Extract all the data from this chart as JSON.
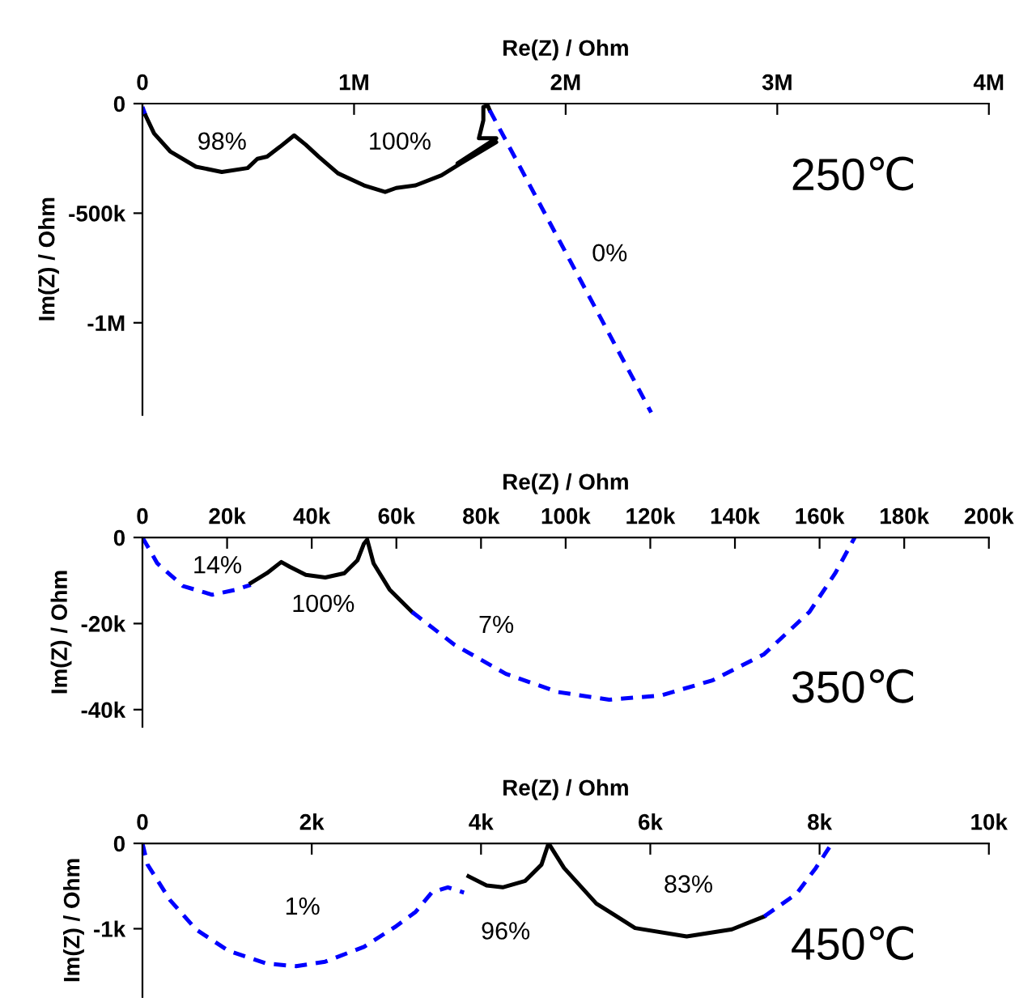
{
  "chart_data": [
    {
      "type": "line",
      "xlabel": "Re(Z) / Ohm",
      "ylabel": "Im(Z) / Ohm",
      "xlim": [
        0,
        4000000
      ],
      "ylim": [
        -1420000,
        0
      ],
      "xticks": [
        {
          "value": 0,
          "label": "0"
        },
        {
          "value": 1000000,
          "label": "1M"
        },
        {
          "value": 2000000,
          "label": "2M"
        },
        {
          "value": 3000000,
          "label": "3M"
        },
        {
          "value": 4000000,
          "label": "4M"
        }
      ],
      "yticks": [
        {
          "value": 0,
          "label": "0"
        },
        {
          "value": -500000,
          "label": "-500k"
        },
        {
          "value": -1000000,
          "label": "-1M"
        }
      ],
      "grid": false,
      "legend": false,
      "marker": "none",
      "series": [
        {
          "color": "#0000ff",
          "line_style": "dashed",
          "x": [
            0,
            15000
          ],
          "values": [
            -15000,
            -55000
          ]
        },
        {
          "color": "#000000",
          "line_style": "solid",
          "x": [
            15000,
            55000,
            131000,
            253000,
            375000,
            497000,
            543000,
            589000,
            650000,
            717000,
            772000,
            833000,
            924000,
            1047000,
            1147000,
            1199000,
            1291000,
            1413000,
            1504000,
            1672000,
            1489000,
            1672000,
            1590000,
            1611000,
            1611000,
            1632000,
            1641000
          ],
          "values": [
            -55000,
            -136000,
            -218000,
            -288000,
            -312000,
            -294000,
            -252000,
            -242000,
            -197000,
            -145000,
            -188000,
            -242000,
            -318000,
            -373000,
            -403000,
            -385000,
            -373000,
            -327000,
            -273000,
            -176000,
            -273000,
            -158000,
            -158000,
            -76000,
            -15000,
            -9000,
            -30000
          ]
        },
        {
          "color": "#0000ff",
          "line_style": "dashed",
          "x": [
            1641000,
            2404000
          ],
          "values": [
            -30000,
            -1409000
          ]
        }
      ],
      "annotations": [
        "98%",
        "100%",
        "0%",
        "250℃"
      ]
    },
    {
      "type": "line",
      "xlabel": "Re(Z) / Ohm",
      "ylabel": "Im(Z) / Ohm",
      "xlim": [
        0,
        200000
      ],
      "ylim": [
        -44000,
        0
      ],
      "xticks": [
        {
          "value": 0,
          "label": "0"
        },
        {
          "value": 20000,
          "label": "20k"
        },
        {
          "value": 40000,
          "label": "40k"
        },
        {
          "value": 60000,
          "label": "60k"
        },
        {
          "value": 80000,
          "label": "80k"
        },
        {
          "value": 100000,
          "label": "100k"
        },
        {
          "value": 120000,
          "label": "120k"
        },
        {
          "value": 140000,
          "label": "140k"
        },
        {
          "value": 160000,
          "label": "160k"
        },
        {
          "value": 180000,
          "label": "180k"
        },
        {
          "value": 200000,
          "label": "200k"
        }
      ],
      "yticks": [
        {
          "value": 0,
          "label": "0"
        },
        {
          "value": -20000,
          "label": "-20k"
        },
        {
          "value": -40000,
          "label": "-40k"
        }
      ],
      "grid": false,
      "legend": false,
      "marker": "none",
      "series": [
        {
          "color": "#0000ff",
          "line_style": "dashed",
          "x": [
            0,
            3500,
            9600,
            16500,
            21800,
            25600
          ],
          "values": [
            0,
            -6000,
            -11300,
            -13300,
            -12200,
            -11000
          ]
        },
        {
          "color": "#000000",
          "line_style": "solid",
          "x": [
            25600,
            29400,
            32800,
            34800,
            38600,
            43200,
            47700,
            50800,
            52300,
            53100,
            54600,
            58400,
            63700
          ],
          "values": [
            -10600,
            -8300,
            -5700,
            -6800,
            -8700,
            -9300,
            -8300,
            -5300,
            -1500,
            -500,
            -6000,
            -12100,
            -17300
          ]
        },
        {
          "color": "#0000ff",
          "line_style": "dashed",
          "x": [
            63700,
            73700,
            85900,
            98100,
            110300,
            122500,
            134700,
            146900,
            157600,
            163700,
            168300
          ],
          "values": [
            -17300,
            -24900,
            -31700,
            -35900,
            -37700,
            -36700,
            -33200,
            -27100,
            -17300,
            -8300,
            0
          ]
        }
      ],
      "annotations": [
        "14%",
        "100%",
        "7%",
        "350℃"
      ]
    },
    {
      "type": "line",
      "xlabel": "Re(Z) / Ohm",
      "ylabel": "Im(Z) / Ohm",
      "xlim": [
        0,
        10000
      ],
      "ylim": [
        -1800,
        0
      ],
      "xticks": [
        {
          "value": 0,
          "label": "0"
        },
        {
          "value": 2000,
          "label": "2k"
        },
        {
          "value": 4000,
          "label": "4k"
        },
        {
          "value": 6000,
          "label": "6k"
        },
        {
          "value": 8000,
          "label": "8k"
        },
        {
          "value": 10000,
          "label": "10k"
        }
      ],
      "yticks": [
        {
          "value": 0,
          "label": "0"
        },
        {
          "value": -1000,
          "label": "-1k"
        }
      ],
      "grid": false,
      "legend": false,
      "marker": "none",
      "series": [
        {
          "color": "#0000ff",
          "line_style": "dashed",
          "x": [
            0,
            61,
            328,
            633,
            1014,
            1472,
            1815,
            2159,
            2617,
            2998,
            3227,
            3417,
            3608,
            3799
          ],
          "values": [
            0,
            -250,
            -667,
            -1008,
            -1258,
            -1409,
            -1439,
            -1386,
            -1212,
            -970,
            -803,
            -576,
            -515,
            -576
          ]
        },
        {
          "color": "#000000",
          "line_style": "solid",
          "x": [
            3852,
            4066,
            4256,
            4523,
            4714,
            4790
          ],
          "values": [
            -386,
            -492,
            -515,
            -439,
            -250,
            -23
          ]
        },
        {
          "color": "#000000",
          "line_style": "solid",
          "x": [
            4813,
            4981,
            5362,
            5820,
            6430,
            6964,
            7346
          ],
          "values": [
            -23,
            -288,
            -705,
            -992,
            -1091,
            -1008,
            -856
          ]
        },
        {
          "color": "#0000ff",
          "line_style": "dashed",
          "x": [
            7346,
            7727,
            7956,
            8146
          ],
          "values": [
            -856,
            -591,
            -288,
            0
          ]
        }
      ],
      "annotations": [
        "1%",
        "96%",
        "83%",
        "450℃"
      ]
    }
  ]
}
